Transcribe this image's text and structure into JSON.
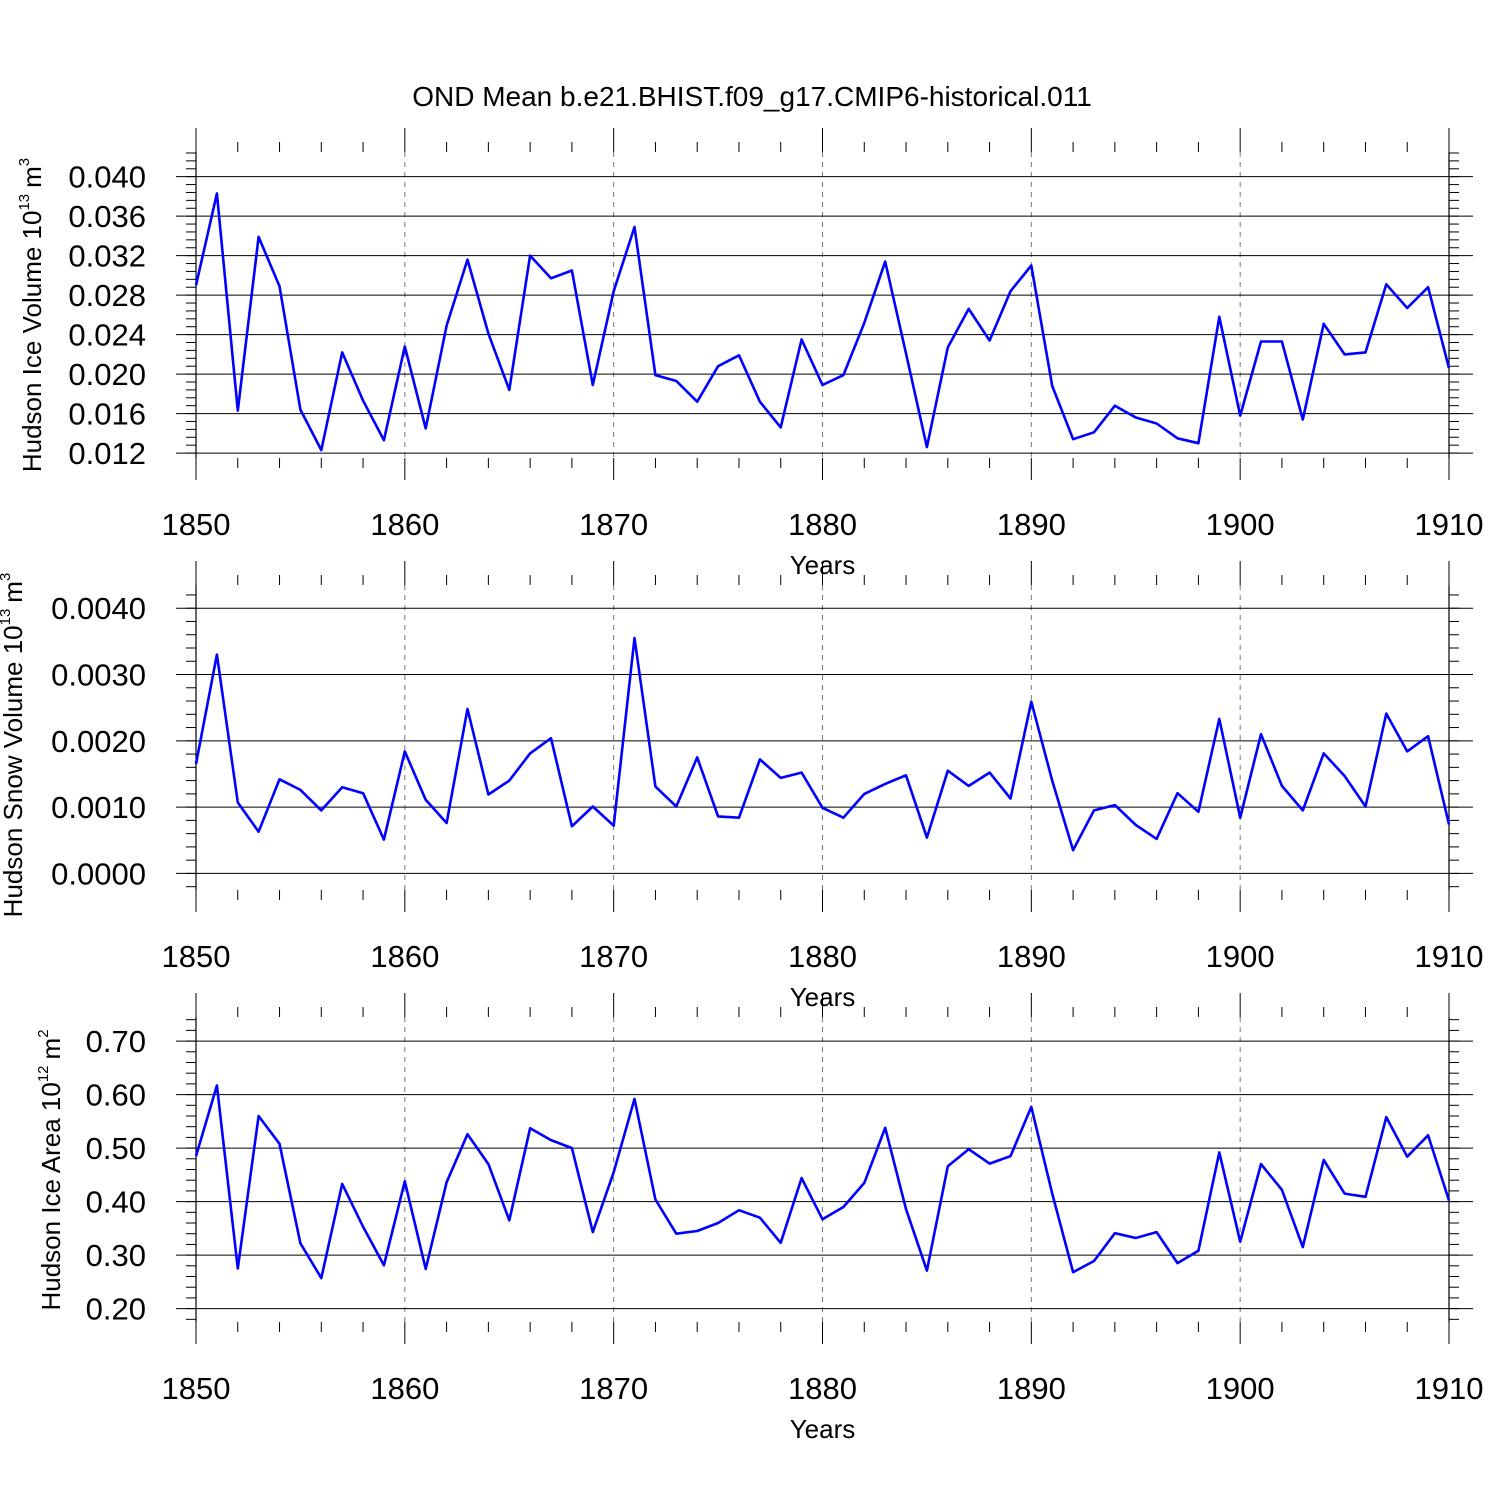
{
  "title": "OND Mean b.e21.BHIST.f09_g17.CMIP6-historical.011",
  "colors": {
    "series": "#0000ff",
    "axis": "#000000",
    "grid": "#777777"
  },
  "chart_data": [
    {
      "type": "line",
      "ylabel_main": "Hudson Ice Volume 10",
      "ylabel_exp": "13",
      "ylabel_unit": "m",
      "ylabel_unit_exp": "3",
      "xlabel": "Years",
      "xlim": [
        1850,
        1910
      ],
      "ylim": [
        0.0115,
        0.0425
      ],
      "x_ticks": [
        1850,
        1860,
        1870,
        1880,
        1890,
        1900,
        1910
      ],
      "y_ticks": [
        0.012,
        0.016,
        0.02,
        0.024,
        0.028,
        0.032,
        0.036,
        0.04
      ],
      "y_tick_labels": [
        "0.012",
        "0.016",
        "0.020",
        "0.024",
        "0.028",
        "0.032",
        "0.036",
        "0.040"
      ],
      "x_grid": "dashed",
      "x_start": 1850,
      "values": [
        0.029,
        0.0383,
        0.0163,
        0.0339,
        0.0289,
        0.0164,
        0.0123,
        0.0222,
        0.0173,
        0.0133,
        0.0228,
        0.0145,
        0.0249,
        0.0316,
        0.0241,
        0.0184,
        0.032,
        0.0297,
        0.0305,
        0.0189,
        0.0284,
        0.0349,
        0.0199,
        0.0193,
        0.0172,
        0.0208,
        0.0219,
        0.0172,
        0.0146,
        0.0235,
        0.0189,
        0.0199,
        0.0252,
        0.0314,
        0.0221,
        0.0126,
        0.0227,
        0.0266,
        0.0234,
        0.0284,
        0.031,
        0.0188,
        0.0134,
        0.0141,
        0.0168,
        0.0156,
        0.015,
        0.0135,
        0.013,
        0.0258,
        0.0158,
        0.0233,
        0.0233,
        0.0154,
        0.0251,
        0.022,
        0.0222,
        0.0291,
        0.0267,
        0.0288,
        0.0206
      ]
    },
    {
      "type": "line",
      "ylabel_main": "Hudson Snow Volume 10",
      "ylabel_exp": "13",
      "ylabel_unit": "m",
      "ylabel_unit_exp": "3",
      "xlabel": "Years",
      "xlim": [
        1850,
        1910
      ],
      "ylim": [
        -0.00025,
        0.00435
      ],
      "x_ticks": [
        1850,
        1860,
        1870,
        1880,
        1890,
        1900,
        1910
      ],
      "y_ticks": [
        0.0,
        0.001,
        0.002,
        0.003,
        0.004
      ],
      "y_tick_labels": [
        "0.0000",
        "0.0010",
        "0.0020",
        "0.0030",
        "0.0040"
      ],
      "x_grid": "dashed",
      "x_start": 1850,
      "values": [
        0.00165,
        0.0033,
        0.00107,
        0.00063,
        0.00142,
        0.00126,
        0.00095,
        0.0013,
        0.00121,
        0.00051,
        0.00184,
        0.00111,
        0.00076,
        0.00248,
        0.00119,
        0.0014,
        0.00181,
        0.00204,
        0.00071,
        0.00101,
        0.00072,
        0.00355,
        0.00131,
        0.00101,
        0.00175,
        0.00086,
        0.00084,
        0.00172,
        0.00144,
        0.00152,
        0.00099,
        0.00084,
        0.0012,
        0.00135,
        0.00148,
        0.00054,
        0.00155,
        0.00132,
        0.00152,
        0.00113,
        0.00259,
        0.0014,
        0.00035,
        0.00095,
        0.00103,
        0.00073,
        0.00052,
        0.00121,
        0.00093,
        0.00233,
        0.00084,
        0.0021,
        0.00132,
        0.00095,
        0.00181,
        0.00147,
        0.00101,
        0.00241,
        0.00184,
        0.00207,
        0.00074
      ]
    },
    {
      "type": "line",
      "ylabel_main": "Hudson Ice Area 10",
      "ylabel_exp": "12",
      "ylabel_unit": "m",
      "ylabel_unit_exp": "2",
      "xlabel": "Years",
      "xlim": [
        1850,
        1910
      ],
      "ylim": [
        0.175,
        0.745
      ],
      "x_ticks": [
        1850,
        1860,
        1870,
        1880,
        1890,
        1900,
        1910
      ],
      "y_ticks": [
        0.2,
        0.3,
        0.4,
        0.5,
        0.6,
        0.7
      ],
      "y_tick_labels": [
        "0.20",
        "0.30",
        "0.40",
        "0.50",
        "0.60",
        "0.70"
      ],
      "x_grid": "dashed",
      "x_start": 1850,
      "values": [
        0.485,
        0.617,
        0.275,
        0.56,
        0.508,
        0.322,
        0.257,
        0.433,
        0.353,
        0.281,
        0.438,
        0.274,
        0.436,
        0.526,
        0.47,
        0.365,
        0.537,
        0.515,
        0.5,
        0.343,
        0.455,
        0.592,
        0.404,
        0.34,
        0.345,
        0.36,
        0.384,
        0.37,
        0.323,
        0.444,
        0.367,
        0.39,
        0.435,
        0.538,
        0.386,
        0.271,
        0.466,
        0.498,
        0.471,
        0.485,
        0.577,
        0.415,
        0.268,
        0.289,
        0.341,
        0.332,
        0.343,
        0.285,
        0.308,
        0.492,
        0.325,
        0.47,
        0.422,
        0.315,
        0.478,
        0.415,
        0.409,
        0.558,
        0.484,
        0.524,
        0.402
      ]
    }
  ]
}
